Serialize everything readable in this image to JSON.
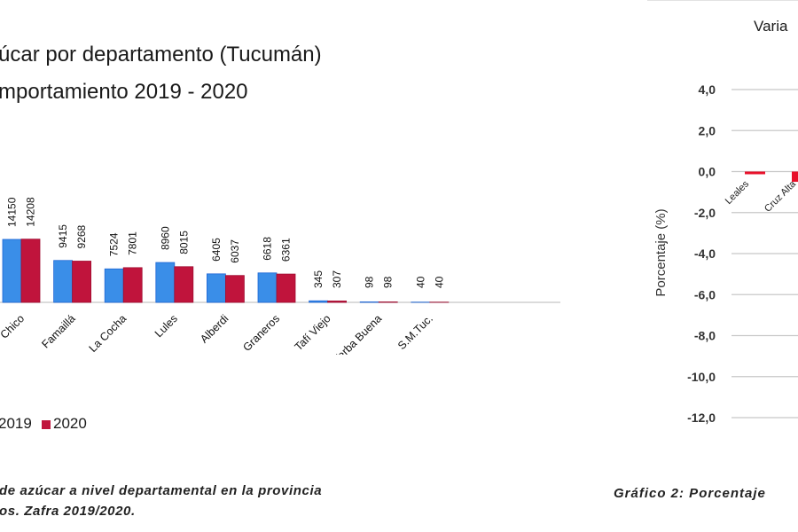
{
  "chart_data": [
    {
      "type": "bar",
      "title_lines": [
        "úcar por departamento (Tucumán)",
        "mportamiento 2019 - 2020"
      ],
      "categories": [
        "Chico",
        "Famaillá",
        "La Cocha",
        "Lules",
        "Alberdi",
        "Graneros",
        "Tafí Viejo",
        "Yerba Buena",
        "S.M.Tuc."
      ],
      "series": [
        {
          "name": "2019",
          "color": "#3a8ee8",
          "values": [
            14150,
            9415,
            7524,
            8960,
            6405,
            6618,
            345,
            98,
            40
          ]
        },
        {
          "name": "2020",
          "color": "#c0143c",
          "values": [
            14208,
            9268,
            7801,
            8015,
            6037,
            6361,
            307,
            98,
            40
          ]
        }
      ],
      "data_labels": true,
      "legend_placement": "bottom",
      "caption_lines": [
        "de azúcar a nivel departamental en la provincia",
        "os.  Zafra 2019/2020."
      ]
    },
    {
      "type": "bar",
      "title": "Varia",
      "ylabel": "Porcentaje (%)",
      "ylim": [
        -12,
        4
      ],
      "yticks": [
        "4,0",
        "2,0",
        "0,0",
        "-2,0",
        "-4,0",
        "-6,0",
        "-8,0",
        "-10,0",
        "-12,0"
      ],
      "ytick_values": [
        4,
        2,
        0,
        -2,
        -4,
        -6,
        -8,
        -10,
        -12
      ],
      "grid": true,
      "categories": [
        "Leales",
        "Cruz Alta"
      ],
      "values": [
        -0.1,
        -0.5
      ],
      "color": "#e8102a",
      "caption": "Gráfico 2: Porcentaje"
    }
  ]
}
